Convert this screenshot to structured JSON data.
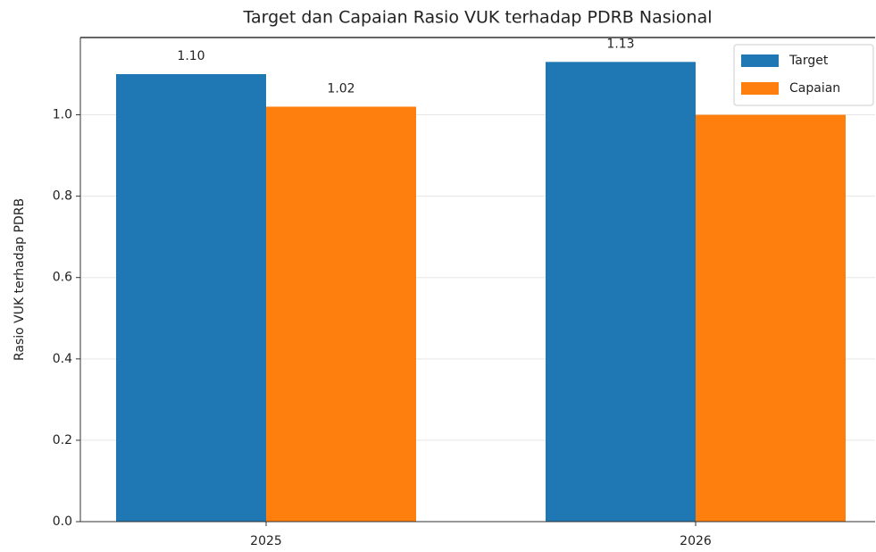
{
  "chart_data": {
    "type": "bar",
    "title": "Target dan Capaian Rasio VUK terhadap PDRB Nasional",
    "y_label": "Rasio VUK terhadap PDRB",
    "categories": [
      "2025",
      "2026"
    ],
    "series": [
      {
        "name": "Target",
        "color": "#1f77b4",
        "values": [
          1.1,
          1.13
        ],
        "value_labels": [
          "1.10",
          "1.13"
        ]
      },
      {
        "name": "Capaian",
        "color": "#ff7f0e",
        "values": [
          1.02,
          1.0
        ],
        "value_labels": [
          "1.02",
          null
        ]
      }
    ],
    "ylim": [
      0,
      1.19
    ],
    "yticks": [
      {
        "value": 0,
        "label": "0.0"
      },
      0.2,
      0.4,
      0.6,
      0.8,
      {
        "value": 1.0,
        "label": "1.0"
      }
    ],
    "grid": true,
    "legend": "upper right"
  }
}
